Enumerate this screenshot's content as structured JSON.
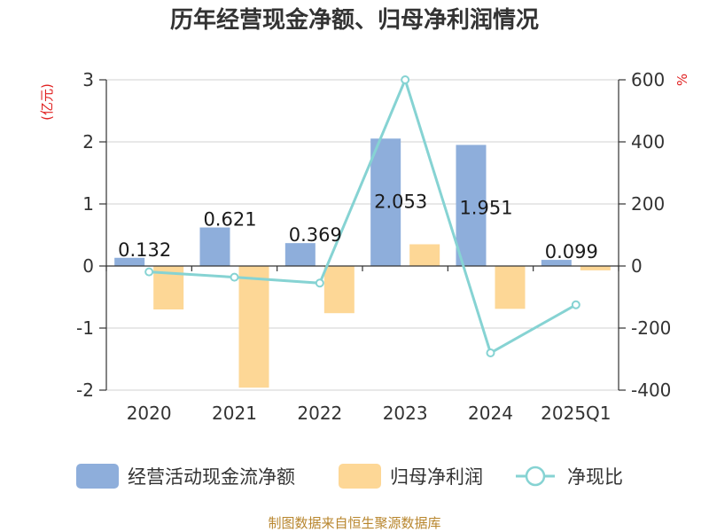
{
  "chart_data": {
    "type": "bar",
    "title": "历年经营现金净额、归母净利润情况",
    "left_unit": "(亿元)",
    "right_unit": "%",
    "categories": [
      "2020",
      "2021",
      "2022",
      "2023",
      "2024",
      "2025Q1"
    ],
    "series": [
      {
        "name": "经营活动现金流净额",
        "type": "bar",
        "axis": "left",
        "color": "#8eaedb",
        "values": [
          0.132,
          0.621,
          0.369,
          2.053,
          1.951,
          0.099
        ],
        "labels": [
          "0.132",
          "0.621",
          "0.369",
          "2.053",
          "1.951",
          "0.099"
        ]
      },
      {
        "name": "归母净利润",
        "type": "bar",
        "axis": "left",
        "color": "#fdd796",
        "values": [
          -0.7,
          -1.96,
          -0.76,
          0.35,
          -0.69,
          -0.07
        ]
      },
      {
        "name": "净现比",
        "type": "line",
        "axis": "right",
        "color": "#86d3d3",
        "values": [
          -19,
          -36,
          -55,
          600,
          -280,
          -125
        ]
      }
    ],
    "left_axis": {
      "min": -2,
      "max": 3,
      "ticks": [
        "-2",
        "-1",
        "0",
        "1",
        "2",
        "3"
      ]
    },
    "right_axis": {
      "min": -400,
      "max": 600,
      "ticks": [
        "-400",
        "-200",
        "0",
        "200",
        "400",
        "600"
      ]
    },
    "grid": true,
    "legend_position": "bottom",
    "source": "制图数据来自恒生聚源数据库"
  }
}
